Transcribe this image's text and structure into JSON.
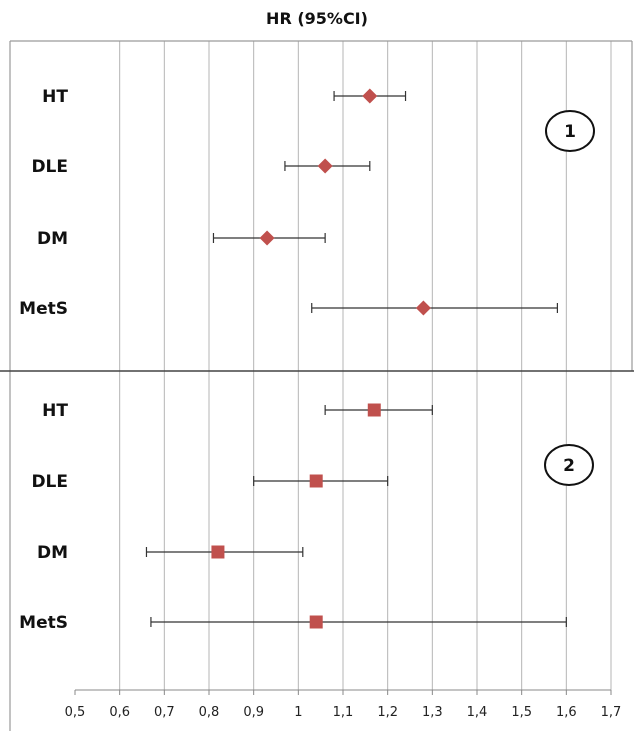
{
  "chart_data": {
    "type": "forest",
    "title": "HR (95%CI)",
    "x_ticks": [
      "0,5",
      "0,6",
      "0,7",
      "0,8",
      "0,9",
      "1",
      "1,1",
      "1,2",
      "1,3",
      "1,4",
      "1,5",
      "1,6",
      "1,7"
    ],
    "x_tick_values": [
      0.5,
      0.6,
      0.7,
      0.8,
      0.9,
      1.0,
      1.1,
      1.2,
      1.3,
      1.4,
      1.5,
      1.6,
      1.7
    ],
    "xlim": [
      0.5,
      1.7
    ],
    "grid": "vertical",
    "marker_color": "#c0504d",
    "panels": [
      {
        "label": "1",
        "marker": "diamond",
        "rows": [
          {
            "category": "HT",
            "hr": 1.16,
            "lower": 1.08,
            "upper": 1.24
          },
          {
            "category": "DLE",
            "hr": 1.06,
            "lower": 0.97,
            "upper": 1.16
          },
          {
            "category": "DM",
            "hr": 0.93,
            "lower": 0.81,
            "upper": 1.06
          },
          {
            "category": "MetS",
            "hr": 1.28,
            "lower": 1.03,
            "upper": 1.58
          }
        ]
      },
      {
        "label": "2",
        "marker": "square",
        "rows": [
          {
            "category": "HT",
            "hr": 1.17,
            "lower": 1.06,
            "upper": 1.3
          },
          {
            "category": "DLE",
            "hr": 1.04,
            "lower": 0.9,
            "upper": 1.2
          },
          {
            "category": "DM",
            "hr": 0.82,
            "lower": 0.66,
            "upper": 1.01
          },
          {
            "category": "MetS",
            "hr": 1.04,
            "lower": 0.67,
            "upper": 1.6
          }
        ]
      }
    ]
  }
}
